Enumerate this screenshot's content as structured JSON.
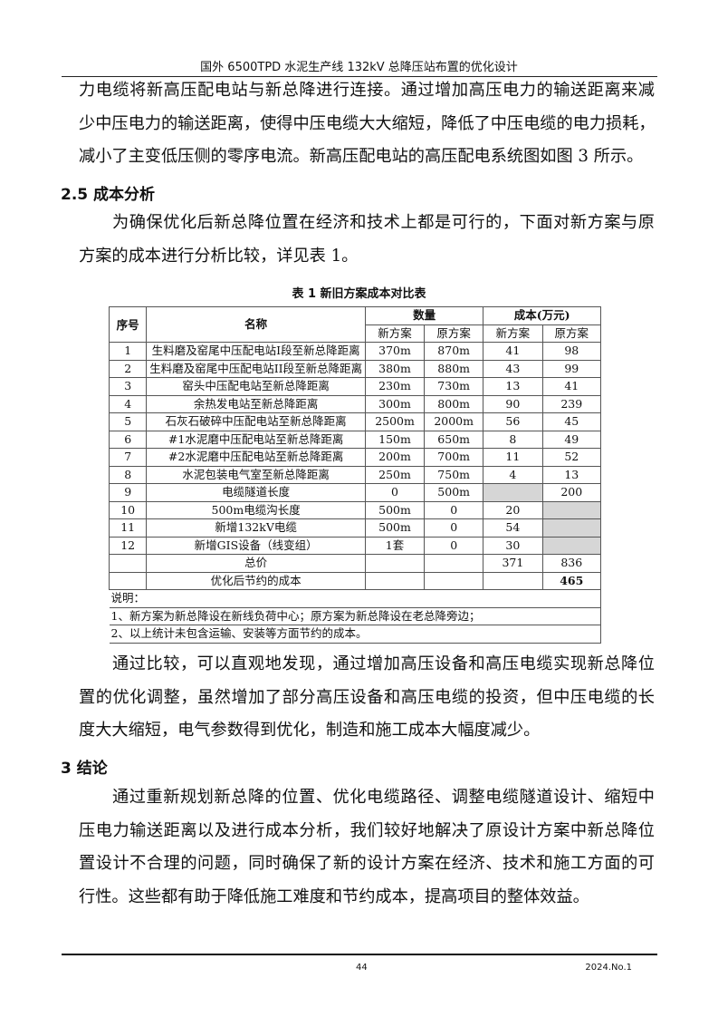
{
  "running_head": "国外 6500TPD 水泥生产线 132kV 总降压站布置的优化设计",
  "paragraph_1": {
    "indent": false,
    "lines": [
      "力电缆将新高压配电站与新总降进行连接。通过增加高压电力的输送距离来减",
      "少中压电力的输送距离，使得中压电缆大大缩短，降低了中压电缆的电力损耗，",
      "减小了主变低压侧的零序电流。新高压配电站的高压配电系统图如图 3 所示。"
    ]
  },
  "heading_2_5": "2.5  成本分析",
  "paragraph_2": {
    "indent": true,
    "lines": [
      "为确保优化后新总降位置在经济和技术上都是可行的，下面对新方案与原",
      "方案的成本进行分析比较，详见表 1。"
    ]
  },
  "table": {
    "caption": "表 1  新旧方案成本对比表",
    "headers": {
      "seq": "序号",
      "name": "名称",
      "quantity": "数量",
      "cost": "成本(万元)",
      "new": "新方案",
      "old": "原方案"
    },
    "rows": [
      [
        "1",
        "生料磨及窑尾中压配电站I段至新总降距离",
        "370m",
        "870m",
        "41",
        "98"
      ],
      [
        "2",
        "生料磨及窑尾中压配电站II段至新总降距离",
        "380m",
        "880m",
        "43",
        "99"
      ],
      [
        "3",
        "窑头中压配电站至新总降距离",
        "230m",
        "730m",
        "13",
        "41"
      ],
      [
        "4",
        "余热发电站至新总降距离",
        "300m",
        "800m",
        "90",
        "239"
      ],
      [
        "5",
        "石灰石破碎中压配电站至新总降距离",
        "2500m",
        "2000m",
        "56",
        "45"
      ],
      [
        "6",
        "#1水泥磨中压配电站至新总降距离",
        "150m",
        "650m",
        "8",
        "49"
      ],
      [
        "7",
        "#2水泥磨中压配电站至新总降距离",
        "200m",
        "700m",
        "11",
        "52"
      ],
      [
        "8",
        "水泥包装电气室至新总降距离",
        "250m",
        "750m",
        "4",
        "13"
      ],
      [
        "9",
        "电缆隧道长度",
        "0",
        "500m",
        "",
        "200"
      ],
      [
        "10",
        "500m电缆沟长度",
        "500m",
        "0",
        "20",
        ""
      ],
      [
        "11",
        "新增132kV电缆",
        "500m",
        "0",
        "54",
        ""
      ],
      [
        "12",
        "新增GIS设备（线变组）",
        "1套",
        "0",
        "30",
        ""
      ]
    ],
    "shaded_cells": [
      [
        8,
        4
      ],
      [
        9,
        5
      ],
      [
        10,
        5
      ],
      [
        11,
        5
      ]
    ],
    "total": {
      "label": "总价",
      "new": "371",
      "old": "836"
    },
    "savings": {
      "label": "优化后节约的成本",
      "value": "465"
    },
    "notes": [
      "说明：",
      "1、新方案为新总降设在新线负荷中心；原方案为新总降设在老总降旁边；",
      "2、以上统计未包含运输、安装等方面节约的成本。"
    ],
    "shade_color": "#d6d6d6"
  },
  "paragraph_3": {
    "indent": true,
    "lines": [
      "通过比较，可以直观地发现，通过增加高压设备和高压电缆实现新总降位",
      "置的优化调整，虽然增加了部分高压设备和高压电缆的投资，但中压电缆的长",
      "度大大缩短，电气参数得到优化，制造和施工成本大幅度减少。"
    ]
  },
  "heading_3": "3   结论",
  "paragraph_4": {
    "indent": true,
    "lines": [
      "通过重新规划新总降的位置、优化电缆路径、调整电缆隧道设计、缩短中",
      "压电力输送距离以及进行成本分析，我们较好地解决了原设计方案中新总降位",
      "置设计不合理的问题，同时确保了新的设计方案在经济、技术和施工方面的可",
      "行性。这些都有助于降低施工难度和节约成本，提高项目的整体效益。"
    ]
  },
  "footer": {
    "page_number": "44",
    "issue": "2024.No.1"
  }
}
